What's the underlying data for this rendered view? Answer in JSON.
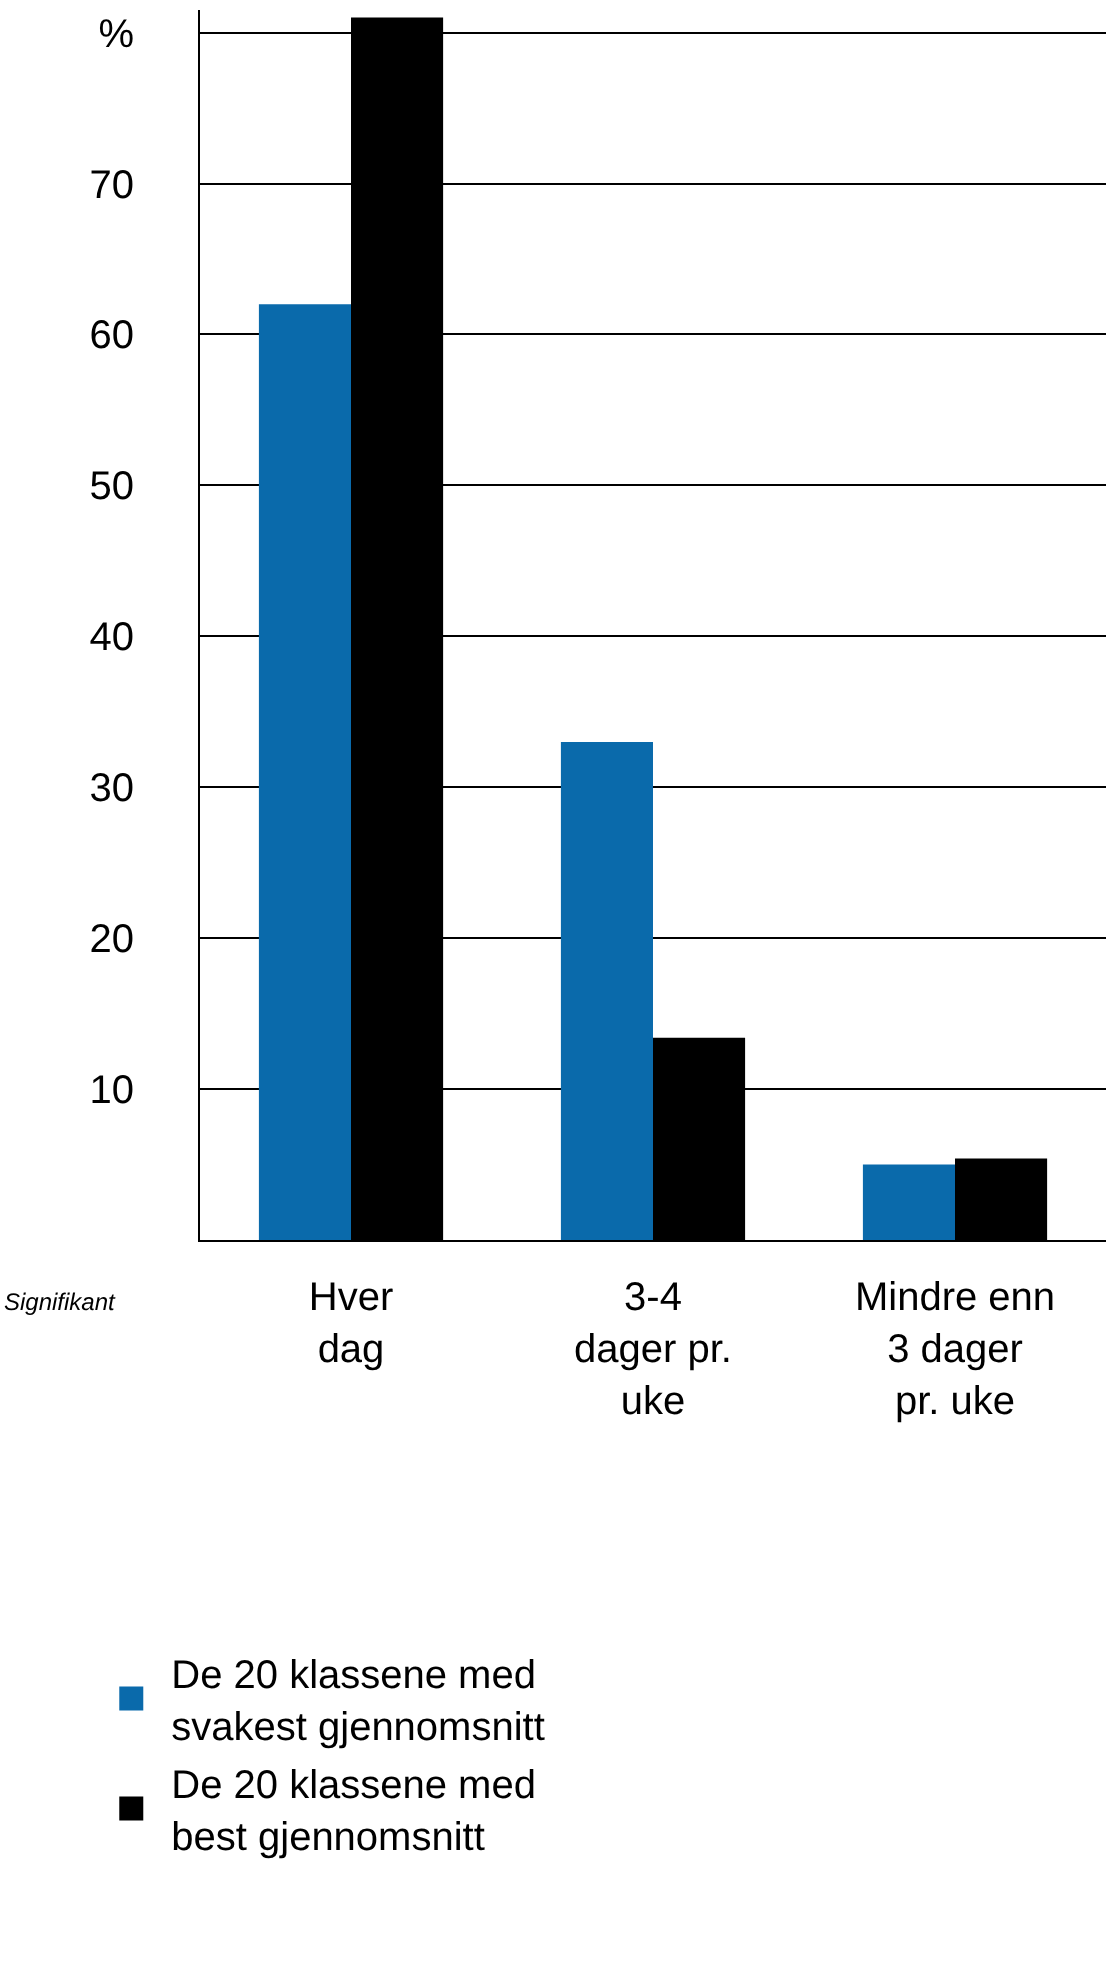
{
  "chart_data": {
    "type": "bar",
    "categories": [
      "Hver\ndag",
      "3-4\ndager pr.\nuke",
      "Mindre enn\n3 dager\npr. uke"
    ],
    "series": [
      {
        "name": "De 20 klassene med\nsvakest gjennomsnitt",
        "color": "#0a6aab",
        "values": [
          62,
          33,
          5
        ]
      },
      {
        "name": "De 20 klassene med\nbest gjennomsnitt",
        "color": "#000000",
        "values": [
          81,
          13.4,
          5.4
        ]
      }
    ],
    "ylim": [
      0,
      81.5
    ],
    "yticks": [
      10,
      20,
      30,
      40,
      50,
      60,
      70,
      {
        "value": 80,
        "label": "%"
      }
    ],
    "grid": "y",
    "legend": "bottom left",
    "annotations": [
      "Signifikant"
    ]
  }
}
